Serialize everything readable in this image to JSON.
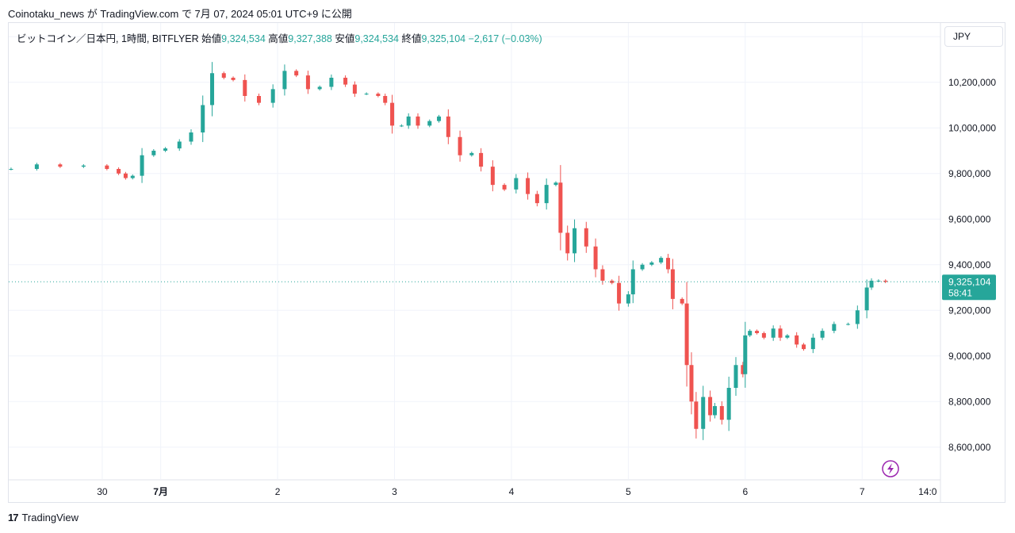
{
  "header": {
    "caption": "Coinotaku_news が TradingView.com で 7月 07, 2024 05:01 UTC+9 に公開"
  },
  "legend": {
    "symbol": "ビットコイン／日本円, 1時間, BITFLYER",
    "open_label": "始値",
    "open": "9,324,534",
    "high_label": "高値",
    "high": "9,327,388",
    "low_label": "安値",
    "low": "9,324,534",
    "close_label": "終値",
    "close": "9,325,104",
    "change": "−2,617 (−0.03%)"
  },
  "currency_button": "JPY",
  "price_tag": {
    "price": "9,325,104",
    "countdown": "58:41"
  },
  "footer": {
    "brand": "TradingView"
  },
  "colors": {
    "up": "#26a69a",
    "down": "#ef5350",
    "grid": "#f0f3fa",
    "axis_text": "#131722"
  },
  "chart_data": {
    "type": "candlestick",
    "title": "ビットコイン／日本円, 1時間, BITFLYER",
    "ylabel": "JPY",
    "ylim": [
      8460000,
      10460000
    ],
    "y_ticks": [
      8600000,
      8800000,
      9000000,
      9200000,
      9400000,
      9600000,
      9800000,
      10000000,
      10200000,
      10400000
    ],
    "y_tick_labels": [
      "8,600,000",
      "8,800,000",
      "9,000,000",
      "9,200,000",
      "9,400,000",
      "9,600,000",
      "9,800,000",
      "10,000,000",
      "10,200,000",
      "10,400,000"
    ],
    "x_tick_labels": [
      "30",
      "7月",
      "2",
      "3",
      "4",
      "5",
      "6",
      "7",
      "14:0"
    ],
    "x_tick_days": [
      -0.5,
      0,
      1,
      2,
      3,
      4,
      5,
      6,
      6.56
    ],
    "x_range_days": [
      -1.3,
      6.67
    ],
    "last_price": 9325104,
    "candles_day_offset_from_jul1": [
      {
        "t": -1.28,
        "c": 9820000
      },
      {
        "t": -1.06,
        "c": 9840000
      },
      {
        "t": -0.86,
        "c": 9830000
      },
      {
        "t": -0.66,
        "c": 9835000
      },
      {
        "t": -0.46,
        "c": 9820000
      },
      {
        "t": -0.36,
        "c": 9800000
      },
      {
        "t": -0.3,
        "c": 9780000
      },
      {
        "t": -0.24,
        "c": 9790000
      },
      {
        "t": -0.16,
        "c": 9880000
      },
      {
        "t": -0.06,
        "c": 9900000
      },
      {
        "t": 0.04,
        "c": 9910000
      },
      {
        "t": 0.16,
        "c": 9940000
      },
      {
        "t": 0.26,
        "c": 9980000
      },
      {
        "t": 0.36,
        "c": 10100000
      },
      {
        "t": 0.44,
        "c": 10240000
      },
      {
        "t": 0.54,
        "c": 10220000
      },
      {
        "t": 0.62,
        "c": 10210000
      },
      {
        "t": 0.72,
        "c": 10140000
      },
      {
        "t": 0.84,
        "c": 10110000
      },
      {
        "t": 0.96,
        "c": 10170000
      },
      {
        "t": 1.06,
        "c": 10250000
      },
      {
        "t": 1.16,
        "c": 10230000
      },
      {
        "t": 1.26,
        "c": 10170000
      },
      {
        "t": 1.36,
        "c": 10180000
      },
      {
        "t": 1.46,
        "c": 10220000
      },
      {
        "t": 1.58,
        "c": 10190000
      },
      {
        "t": 1.66,
        "c": 10150000
      },
      {
        "t": 1.76,
        "c": 10150000
      },
      {
        "t": 1.86,
        "c": 10140000
      },
      {
        "t": 1.92,
        "c": 10110000
      },
      {
        "t": 1.98,
        "c": 10010000
      },
      {
        "t": 2.06,
        "c": 10010000
      },
      {
        "t": 2.12,
        "c": 10050000
      },
      {
        "t": 2.2,
        "c": 10010000
      },
      {
        "t": 2.3,
        "c": 10030000
      },
      {
        "t": 2.38,
        "c": 10050000
      },
      {
        "t": 2.46,
        "c": 9960000
      },
      {
        "t": 2.56,
        "c": 9880000
      },
      {
        "t": 2.66,
        "c": 9890000
      },
      {
        "t": 2.74,
        "c": 9830000
      },
      {
        "t": 2.84,
        "c": 9750000
      },
      {
        "t": 2.94,
        "c": 9730000
      },
      {
        "t": 3.04,
        "c": 9780000
      },
      {
        "t": 3.14,
        "c": 9710000
      },
      {
        "t": 3.22,
        "c": 9670000
      },
      {
        "t": 3.3,
        "c": 9750000
      },
      {
        "t": 3.38,
        "c": 9760000
      },
      {
        "t": 3.42,
        "c": 9540000
      },
      {
        "t": 3.48,
        "c": 9450000
      },
      {
        "t": 3.54,
        "c": 9560000
      },
      {
        "t": 3.64,
        "c": 9480000
      },
      {
        "t": 3.72,
        "c": 9380000
      },
      {
        "t": 3.78,
        "c": 9330000
      },
      {
        "t": 3.86,
        "c": 9320000
      },
      {
        "t": 3.92,
        "c": 9230000
      },
      {
        "t": 4.0,
        "c": 9270000
      },
      {
        "t": 4.04,
        "c": 9380000
      },
      {
        "t": 4.12,
        "c": 9400000
      },
      {
        "t": 4.2,
        "c": 9410000
      },
      {
        "t": 4.28,
        "c": 9430000
      },
      {
        "t": 4.34,
        "c": 9380000
      },
      {
        "t": 4.38,
        "c": 9250000
      },
      {
        "t": 4.46,
        "c": 9230000
      },
      {
        "t": 4.5,
        "c": 8960000
      },
      {
        "t": 4.54,
        "c": 8800000
      },
      {
        "t": 4.58,
        "c": 8680000
      },
      {
        "t": 4.64,
        "c": 8820000
      },
      {
        "t": 4.7,
        "c": 8740000
      },
      {
        "t": 4.74,
        "c": 8780000
      },
      {
        "t": 4.8,
        "c": 8720000
      },
      {
        "t": 4.86,
        "c": 8860000
      },
      {
        "t": 4.92,
        "c": 8960000
      },
      {
        "t": 4.98,
        "c": 8920000
      },
      {
        "t": 5.0,
        "c": 9090000
      },
      {
        "t": 5.04,
        "c": 9110000
      },
      {
        "t": 5.1,
        "c": 9100000
      },
      {
        "t": 5.16,
        "c": 9080000
      },
      {
        "t": 5.24,
        "c": 9120000
      },
      {
        "t": 5.3,
        "c": 9080000
      },
      {
        "t": 5.36,
        "c": 9090000
      },
      {
        "t": 5.44,
        "c": 9050000
      },
      {
        "t": 5.5,
        "c": 9030000
      },
      {
        "t": 5.58,
        "c": 9080000
      },
      {
        "t": 5.66,
        "c": 9110000
      },
      {
        "t": 5.76,
        "c": 9140000
      },
      {
        "t": 5.88,
        "c": 9140000
      },
      {
        "t": 5.96,
        "c": 9200000
      },
      {
        "t": 6.04,
        "c": 9300000
      },
      {
        "t": 6.08,
        "c": 9330000
      },
      {
        "t": 6.14,
        "c": 9330000
      },
      {
        "t": 6.2,
        "c": 9325104
      }
    ]
  }
}
